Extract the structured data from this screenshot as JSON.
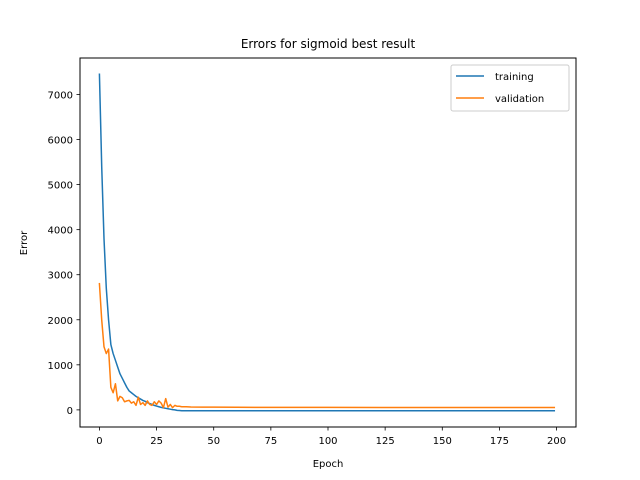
{
  "chart_data": {
    "type": "line",
    "title": "Errors for sigmoid best result",
    "xlabel": "Epoch",
    "ylabel": "Error",
    "xlim": [
      -8.5,
      208.5
    ],
    "ylim": [
      -380,
      7810
    ],
    "xticks": [
      0,
      25,
      50,
      75,
      100,
      125,
      150,
      175,
      200
    ],
    "yticks": [
      0,
      1000,
      2000,
      3000,
      4000,
      5000,
      6000,
      7000
    ],
    "grid": false,
    "legend_position": "top-right",
    "series": [
      {
        "name": "training",
        "color": "#1f77b4",
        "x": [
          0,
          1,
          2,
          3,
          4,
          5,
          6,
          7,
          8,
          9,
          10,
          11,
          12,
          13,
          14,
          15,
          16,
          17,
          18,
          19,
          20,
          21,
          22,
          23,
          24,
          25,
          26,
          27,
          28,
          29,
          30,
          31,
          32,
          33,
          34,
          35,
          36,
          38,
          40,
          45,
          50,
          60,
          75,
          100,
          125,
          150,
          175,
          199
        ],
        "y": [
          7450,
          5400,
          3800,
          2700,
          2000,
          1450,
          1250,
          1100,
          950,
          800,
          700,
          600,
          500,
          420,
          380,
          340,
          300,
          270,
          240,
          210,
          190,
          160,
          140,
          120,
          100,
          85,
          70,
          55,
          45,
          35,
          25,
          15,
          5,
          0,
          -10,
          -15,
          -20,
          -20,
          -20,
          -20,
          -20,
          -20,
          -20,
          -20,
          -20,
          -20,
          -20,
          -20
        ]
      },
      {
        "name": "validation",
        "color": "#ff7f0e",
        "x": [
          0,
          1,
          2,
          3,
          4,
          5,
          6,
          7,
          8,
          9,
          10,
          11,
          12,
          13,
          14,
          15,
          16,
          17,
          18,
          19,
          20,
          21,
          22,
          23,
          24,
          25,
          26,
          27,
          28,
          29,
          30,
          31,
          32,
          33,
          34,
          35,
          36,
          38,
          40,
          45,
          50,
          60,
          75,
          100,
          125,
          150,
          175,
          199
        ],
        "y": [
          2800,
          2000,
          1400,
          1250,
          1350,
          500,
          380,
          580,
          200,
          300,
          270,
          180,
          200,
          210,
          150,
          180,
          100,
          280,
          120,
          160,
          100,
          200,
          120,
          100,
          180,
          120,
          200,
          150,
          50,
          250,
          60,
          120,
          50,
          100,
          80,
          80,
          70,
          70,
          65,
          62,
          60,
          58,
          56,
          55,
          54,
          54,
          54,
          54
        ]
      }
    ]
  }
}
